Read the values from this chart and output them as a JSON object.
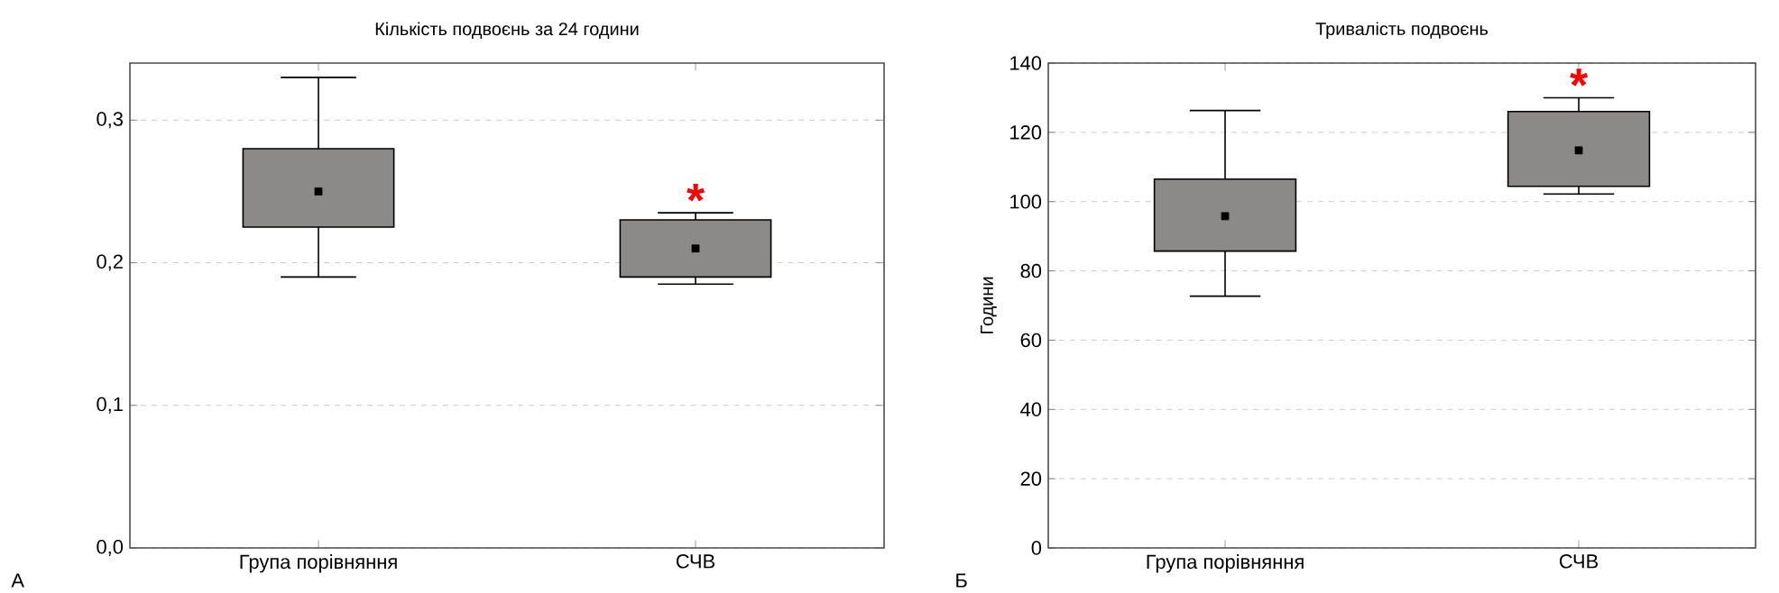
{
  "chart_data": [
    {
      "type": "box",
      "title": "Кількість подвоєнь за 24 години",
      "categories": [
        "Група порівняння",
        "СЧВ"
      ],
      "color": "#8c8a88",
      "boxes": [
        {
          "low": 0.19,
          "q1": 0.225,
          "median": 0.25,
          "q3": 0.28,
          "high": 0.33
        },
        {
          "low": 0.185,
          "q1": 0.19,
          "median": 0.21,
          "q3": 0.23,
          "high": 0.235
        }
      ],
      "ylim": [
        0,
        0.34
      ],
      "yticks": [
        {
          "value": 0,
          "label": "0,0"
        },
        {
          "value": 0.1,
          "label": "0,1"
        },
        {
          "value": 0.2,
          "label": "0,2"
        },
        {
          "value": 0.3,
          "label": "0,3"
        }
      ],
      "grid": "y",
      "annotations": [
        "А",
        "*"
      ]
    },
    {
      "type": "box",
      "title": "Тривалість подвоєнь",
      "ylabel": "Години",
      "categories": [
        "Група порівняння",
        "СЧВ"
      ],
      "color": "#8c8a88",
      "boxes": [
        {
          "low": 72.7,
          "q1": 85.7,
          "median": 95.8,
          "q3": 106.5,
          "high": 126.3
        },
        {
          "low": 102.2,
          "q1": 104.4,
          "median": 114.8,
          "q3": 126,
          "high": 130
        }
      ],
      "ylim": [
        0,
        140
      ],
      "yticks": [
        0,
        20,
        40,
        60,
        80,
        100,
        120,
        140
      ],
      "grid": "y",
      "annotations": [
        "Б",
        "*"
      ]
    }
  ]
}
